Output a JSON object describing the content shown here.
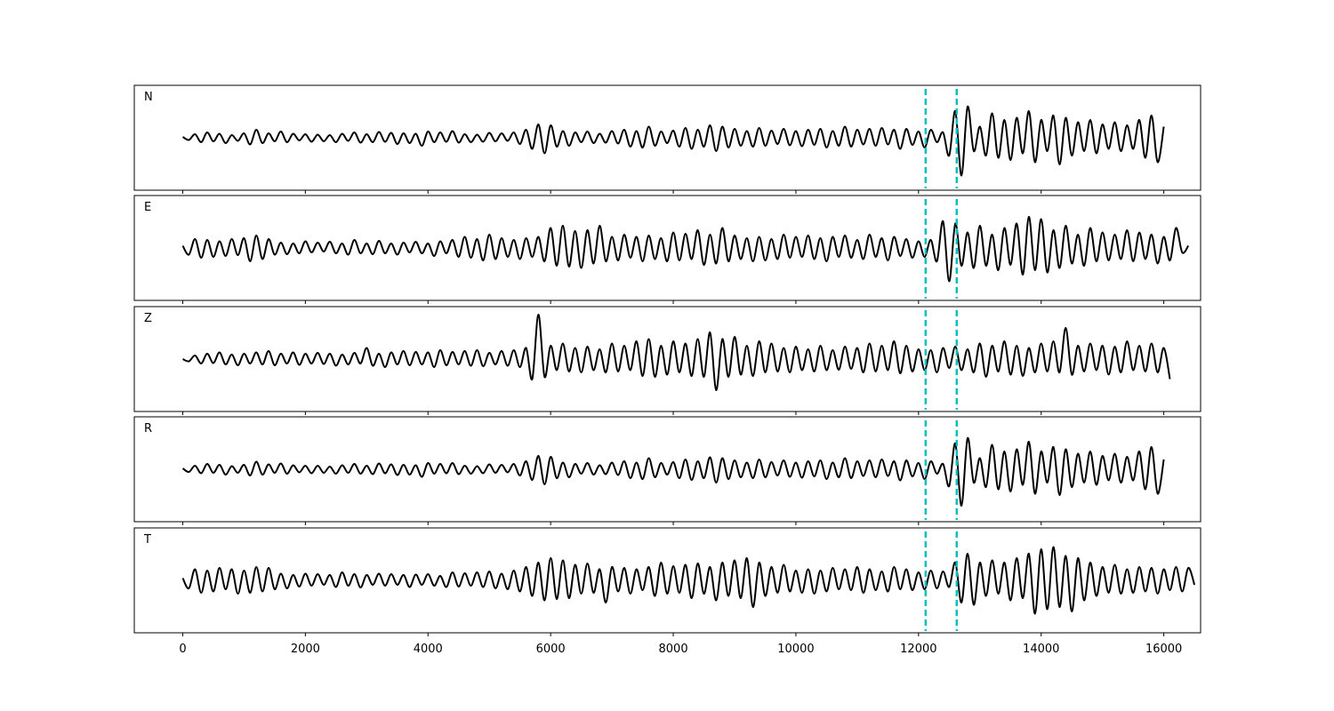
{
  "chart_data": {
    "type": "line",
    "title": "",
    "xlabel": "",
    "ylabel": "",
    "xlim": [
      -790,
      16600
    ],
    "ylim": [
      -118,
      118
    ],
    "x_ticks": [
      0,
      2000,
      4000,
      6000,
      8000,
      10000,
      12000,
      14000,
      16000
    ],
    "x_tick_labels": [
      "0",
      "2000",
      "4000",
      "6000",
      "8000",
      "10000",
      "12000",
      "14000",
      "16000"
    ],
    "grid": false,
    "line_color": "#000000",
    "marker_color": "#00bfbf",
    "markers_x": [
      12116,
      12623
    ],
    "x_start": 0,
    "x_step": 100,
    "panels": [
      {
        "label": "N",
        "values": [
          2,
          -5,
          8,
          -10,
          12,
          -8,
          9,
          -12,
          6,
          -7,
          10,
          -15,
          18,
          -12,
          10,
          -8,
          14,
          -10,
          9,
          -6,
          8,
          -9,
          7,
          -8,
          6,
          -10,
          9,
          -7,
          12,
          -11,
          8,
          -10,
          13,
          -9,
          11,
          -14,
          10,
          -12,
          9,
          -18,
          14,
          -10,
          12,
          -9,
          15,
          -11,
          8,
          -10,
          7,
          -9,
          11,
          -8,
          10,
          -7,
          12,
          -14,
          18,
          -25,
          30,
          -35,
          28,
          -20,
          15,
          -18,
          12,
          -10,
          14,
          -12,
          9,
          -11,
          15,
          -13,
          18,
          -20,
          15,
          -22,
          25,
          -18,
          14,
          -12,
          16,
          -20,
          22,
          -25,
          18,
          -20,
          28,
          -30,
          25,
          -22,
          20,
          -18,
          15,
          -20,
          22,
          -18,
          16,
          -14,
          20,
          -17,
          15,
          -19,
          18,
          -16,
          20,
          -22,
          15,
          -18,
          25,
          -20,
          18,
          -15,
          20,
          -18,
          22,
          -15,
          18,
          -25,
          20,
          -16,
          14,
          -22,
          18,
          -10,
          12,
          -40,
          60,
          -85,
          70,
          -30,
          25,
          -40,
          55,
          -45,
          40,
          -50,
          45,
          -35,
          60,
          -55,
          40,
          -30,
          50,
          -60,
          45,
          -40,
          35,
          -30,
          40,
          -35,
          30,
          -25,
          35,
          -30,
          28,
          -25,
          40,
          -45,
          50,
          -55,
          25
        ]
      },
      {
        "label": "E",
        "values": [
          5,
          -15,
          20,
          -22,
          18,
          -20,
          15,
          -18,
          20,
          -16,
          22,
          -30,
          28,
          -25,
          20,
          -15,
          12,
          -14,
          10,
          -12,
          15,
          -10,
          12,
          -8,
          14,
          -12,
          10,
          -15,
          18,
          -12,
          10,
          -14,
          16,
          -12,
          10,
          -15,
          12,
          -10,
          14,
          -12,
          10,
          -18,
          15,
          -12,
          18,
          -20,
          25,
          -22,
          20,
          -28,
          30,
          -25,
          22,
          -20,
          18,
          -25,
          22,
          -20,
          25,
          -30,
          45,
          -40,
          50,
          -42,
          38,
          -45,
          40,
          -35,
          50,
          -30,
          25,
          -28,
          30,
          -22,
          25,
          -30,
          28,
          -25,
          22,
          -30,
          35,
          -28,
          32,
          -25,
          40,
          -38,
          30,
          -35,
          45,
          -30,
          28,
          -25,
          22,
          -30,
          25,
          -28,
          20,
          -25,
          30,
          -22,
          25,
          -20,
          28,
          -25,
          22,
          -30,
          25,
          -20,
          28,
          -22,
          18,
          -25,
          30,
          -20,
          22,
          -28,
          25,
          -18,
          20,
          -22,
          15,
          -20,
          18,
          -30,
          60,
          -75,
          55,
          -40,
          35,
          -45,
          50,
          -40,
          30,
          -50,
          45,
          -38,
          55,
          -60,
          70,
          -50,
          65,
          -55,
          40,
          -45,
          50,
          -35,
          30,
          -40,
          45,
          -30,
          35,
          -28,
          30,
          -25,
          40,
          -30,
          35,
          -25,
          30,
          -35,
          25,
          -28,
          45,
          -10,
          5
        ]
      },
      {
        "label": "Z",
        "values": [
          0,
          -5,
          8,
          -10,
          12,
          -9,
          15,
          -12,
          10,
          -14,
          12,
          -10,
          15,
          -12,
          18,
          -14,
          12,
          -10,
          15,
          -13,
          12,
          -10,
          14,
          -11,
          12,
          -15,
          10,
          -12,
          14,
          -10,
          25,
          -15,
          12,
          -18,
          15,
          -12,
          18,
          -14,
          16,
          -12,
          15,
          -18,
          20,
          -14,
          16,
          -12,
          18,
          -15,
          20,
          -16,
          14,
          -12,
          18,
          -15,
          20,
          -18,
          25,
          -45,
          100,
          -40,
          30,
          -25,
          35,
          -28,
          25,
          -30,
          28,
          -25,
          22,
          -30,
          35,
          -28,
          30,
          -25,
          40,
          -38,
          45,
          -40,
          30,
          -35,
          40,
          -30,
          35,
          -38,
          45,
          -40,
          60,
          -70,
          45,
          -40,
          50,
          -35,
          30,
          -38,
          40,
          -30,
          35,
          -28,
          25,
          -30,
          28,
          -25,
          22,
          -28,
          30,
          -25,
          20,
          -24,
          28,
          -22,
          25,
          -30,
          35,
          -28,
          30,
          -25,
          40,
          -32,
          30,
          -28,
          22,
          -25,
          20,
          -30,
          25,
          -20,
          28,
          -25,
          22,
          -30,
          35,
          -40,
          30,
          -28,
          40,
          -35,
          30,
          -38,
          25,
          -30,
          35,
          -28,
          40,
          -30,
          70,
          -35,
          30,
          -28,
          35,
          -25,
          30,
          -35,
          28,
          -30,
          40,
          -25,
          30,
          -28,
          35,
          -30,
          25,
          -45
        ]
      },
      {
        "label": "R",
        "values": [
          2,
          -6,
          8,
          -9,
          12,
          -8,
          10,
          -12,
          7,
          -8,
          10,
          -14,
          17,
          -12,
          11,
          -8,
          13,
          -10,
          9,
          -7,
          8,
          -9,
          8,
          -8,
          6,
          -10,
          9,
          -8,
          12,
          -10,
          8,
          -11,
          13,
          -9,
          11,
          -13,
          10,
          -12,
          9,
          -17,
          14,
          -10,
          12,
          -9,
          14,
          -11,
          8,
          -10,
          7,
          -9,
          11,
          -8,
          10,
          -7,
          12,
          -14,
          18,
          -24,
          30,
          -34,
          28,
          -20,
          15,
          -18,
          12,
          -10,
          14,
          -12,
          9,
          -11,
          15,
          -13,
          18,
          -20,
          15,
          -22,
          25,
          -18,
          14,
          -12,
          16,
          -20,
          22,
          -24,
          18,
          -20,
          27,
          -30,
          25,
          -22,
          20,
          -18,
          15,
          -20,
          22,
          -18,
          16,
          -14,
          20,
          -17,
          15,
          -19,
          18,
          -16,
          20,
          -22,
          15,
          -18,
          25,
          -20,
          18,
          -15,
          20,
          -18,
          22,
          -15,
          18,
          -25,
          20,
          -16,
          14,
          -22,
          18,
          -10,
          12,
          -38,
          58,
          -82,
          70,
          -30,
          25,
          -40,
          55,
          -45,
          40,
          -50,
          45,
          -35,
          62,
          -55,
          40,
          -30,
          50,
          -58,
          45,
          -40,
          35,
          -30,
          40,
          -35,
          30,
          -25,
          35,
          -30,
          28,
          -25,
          40,
          -45,
          50,
          -55,
          22
        ]
      },
      {
        "label": "T",
        "values": [
          5,
          -18,
          25,
          -28,
          22,
          -25,
          28,
          -20,
          25,
          -30,
          22,
          -28,
          30,
          -25,
          28,
          -20,
          15,
          -18,
          12,
          -14,
          15,
          -12,
          14,
          -10,
          12,
          -15,
          18,
          -12,
          14,
          -16,
          12,
          -10,
          15,
          -12,
          14,
          -10,
          12,
          -15,
          13,
          -10,
          14,
          -12,
          10,
          -15,
          18,
          -14,
          16,
          -12,
          18,
          -15,
          20,
          -18,
          15,
          -20,
          22,
          -25,
          30,
          -35,
          40,
          -45,
          50,
          -42,
          45,
          -40,
          35,
          -30,
          38,
          -28,
          25,
          -50,
          30,
          -25,
          28,
          -30,
          25,
          -22,
          30,
          -35,
          40,
          -30,
          32,
          -28,
          35,
          -40,
          38,
          -30,
          30,
          -45,
          40,
          -35,
          45,
          -40,
          50,
          -60,
          40,
          -35,
          30,
          -28,
          35,
          -25,
          22,
          -28,
          25,
          -30,
          22,
          -25,
          28,
          -20,
          25,
          -22,
          30,
          -28,
          25,
          -22,
          20,
          -25,
          30,
          -20,
          25,
          -22,
          18,
          -20,
          22,
          -18,
          20,
          -15,
          40,
          -50,
          60,
          -55,
          40,
          -35,
          45,
          -30,
          40,
          -45,
          50,
          -40,
          60,
          -75,
          70,
          -65,
          75,
          -60,
          55,
          -70,
          50,
          -45,
          40,
          -35,
          30,
          -28,
          35,
          -30,
          25,
          -28,
          30,
          -25,
          28,
          -30,
          25,
          -22,
          30,
          -25,
          28,
          -10
        ]
      }
    ]
  }
}
